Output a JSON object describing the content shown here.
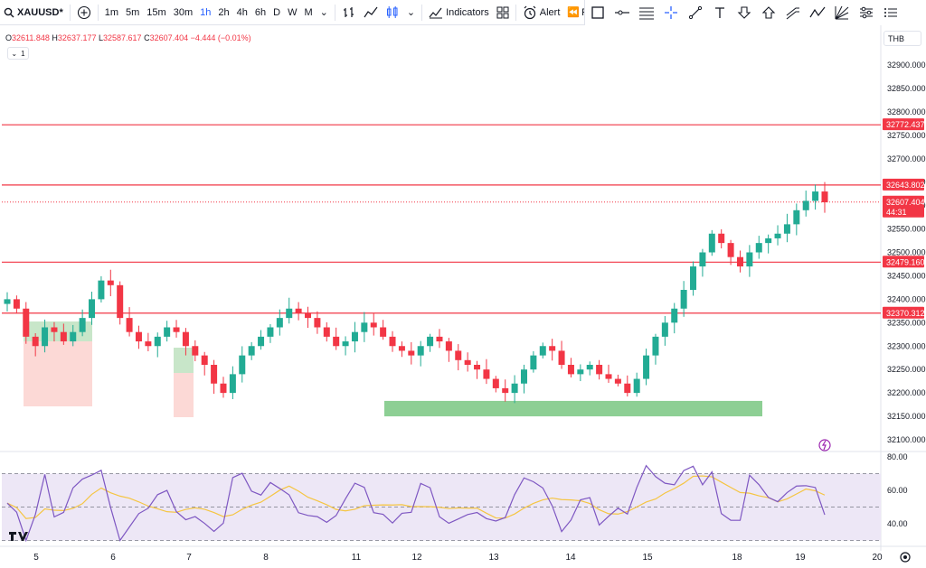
{
  "toolbar": {
    "symbol": "XAUUSD*",
    "add_label": "+",
    "intervals": [
      "1m",
      "5m",
      "15m",
      "30m",
      "1h",
      "2h",
      "4h",
      "6h",
      "D",
      "W",
      "M"
    ],
    "active_interval": "1h",
    "indicators_label": "Indicators",
    "alert_label": "Alert",
    "replay_label": "R"
  },
  "ohlc": {
    "o_label": "O",
    "o": "32611.848",
    "h_label": "H",
    "h": "32637.177",
    "l_label": "L",
    "l": "32587.617",
    "c_label": "C",
    "c": "32607.404",
    "change": "−4.444 (−0.01%)"
  },
  "collapse_count": "1",
  "currency": "THB",
  "price_axis": {
    "ticks": [
      "32900.000",
      "32850.000",
      "32800.000",
      "32750.000",
      "32700.000",
      "32650.000",
      "32600.000",
      "32550.000",
      "32500.000",
      "32450.000",
      "32400.000",
      "32350.000",
      "32300.000",
      "32250.000",
      "32200.000",
      "32150.000",
      "32100.000"
    ],
    "tick_values": [
      32900,
      32850,
      32800,
      32750,
      32700,
      32650,
      32600,
      32550,
      32500,
      32450,
      32400,
      32350,
      32300,
      32250,
      32200,
      32150,
      32100
    ]
  },
  "horizontal_lines": [
    {
      "label": "32772.437",
      "value": 32772.437
    },
    {
      "label": "32643.802",
      "value": 32643.802
    },
    {
      "label": "32479.160",
      "value": 32479.16
    },
    {
      "label": "32370.312",
      "value": 32370.312
    }
  ],
  "current_price": {
    "label": "32607.404",
    "countdown": "44:31",
    "value": 32607.404
  },
  "zones": [
    {
      "type": "support",
      "from": 32150,
      "to": 32183,
      "color": "#8dcf94"
    }
  ],
  "rsi": {
    "ticks": [
      "80.00",
      "60.00",
      "40.00"
    ],
    "tick_values": [
      80,
      60,
      40
    ],
    "bands": [
      70,
      50,
      30
    ]
  },
  "time_axis": {
    "labels": [
      "5",
      "6",
      "7",
      "8",
      "11",
      "12",
      "13",
      "14",
      "15",
      "18",
      "19",
      "20"
    ]
  },
  "colors": {
    "up": "#22ab94",
    "down": "#f23645",
    "hline": "#f23645",
    "rsi_line": "#7e57c2",
    "rsi_ma": "#f5c542",
    "accent": "#2962ff"
  },
  "chart_data": {
    "type": "candlestick",
    "series": [
      {
        "name": "XAUUSD*",
        "values": [
          32400,
          32380,
          32320,
          32300,
          32340,
          32330,
          32310,
          32330,
          32360,
          32400,
          32440,
          32430,
          32360,
          32330,
          32310,
          32300,
          32320,
          32340,
          32330,
          32300,
          32280,
          32260,
          32220,
          32200,
          32240,
          32280,
          32300,
          32320,
          32340,
          32360,
          32380,
          32370,
          32360,
          32340,
          32320,
          32300,
          32310,
          32330,
          32350,
          32340,
          32320,
          32300,
          32290,
          32280,
          32300,
          32320,
          32310,
          32290,
          32270,
          32260,
          32250,
          32230,
          32210,
          32200,
          32220,
          32250,
          32280,
          32300,
          32290,
          32260,
          32240,
          32250,
          32260,
          32240,
          32230,
          32220,
          32200,
          32230,
          32280,
          32320,
          32350,
          32380,
          32420,
          32470,
          32500,
          32540,
          32520,
          32490,
          32470,
          32500,
          32520,
          32530,
          32540,
          32560,
          32590,
          32610,
          32630,
          32607
        ]
      }
    ]
  }
}
